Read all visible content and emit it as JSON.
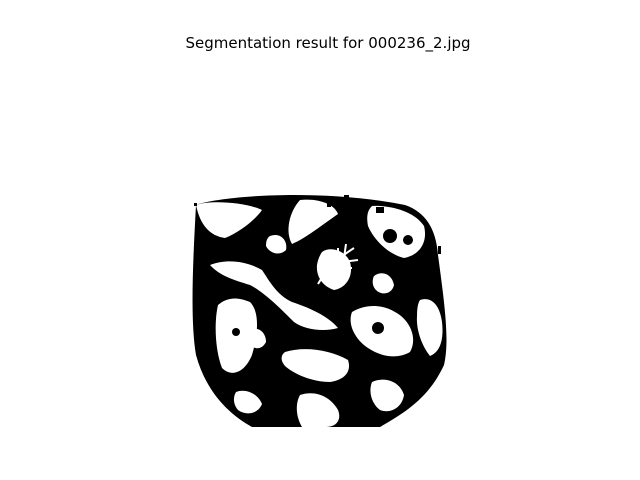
{
  "figure": {
    "title": "Segmentation result for 000236_2.jpg"
  },
  "image": {
    "description_icon": "segmentation-mask-icon",
    "foreground_color": "#000000",
    "background_color": "#ffffff"
  }
}
